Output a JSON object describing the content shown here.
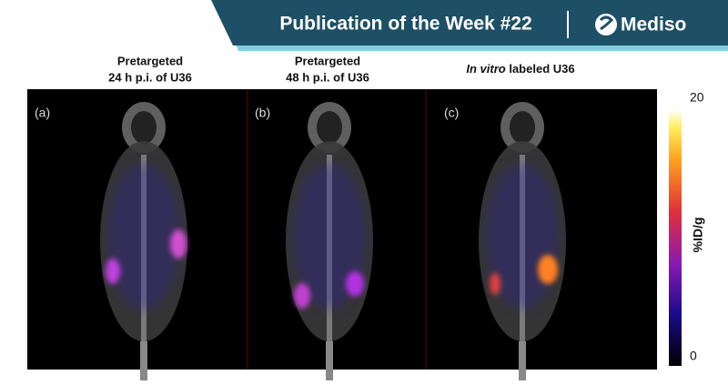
{
  "header": {
    "title": "Publication of the Week #22",
    "brand": "Mediso"
  },
  "panels": [
    {
      "title_lines": [
        "Pretargeted",
        "24 h p.i. of U36"
      ],
      "label": "(a)"
    },
    {
      "title_lines": [
        "Pretargeted",
        "48 h p.i. of U36"
      ],
      "label": "(b)"
    },
    {
      "title_italic": "In vitro",
      "title_rest": "labeled U36",
      "label": "(c)"
    }
  ],
  "colorbar": {
    "max": 20,
    "min": 0,
    "unit": "%ID/g"
  }
}
